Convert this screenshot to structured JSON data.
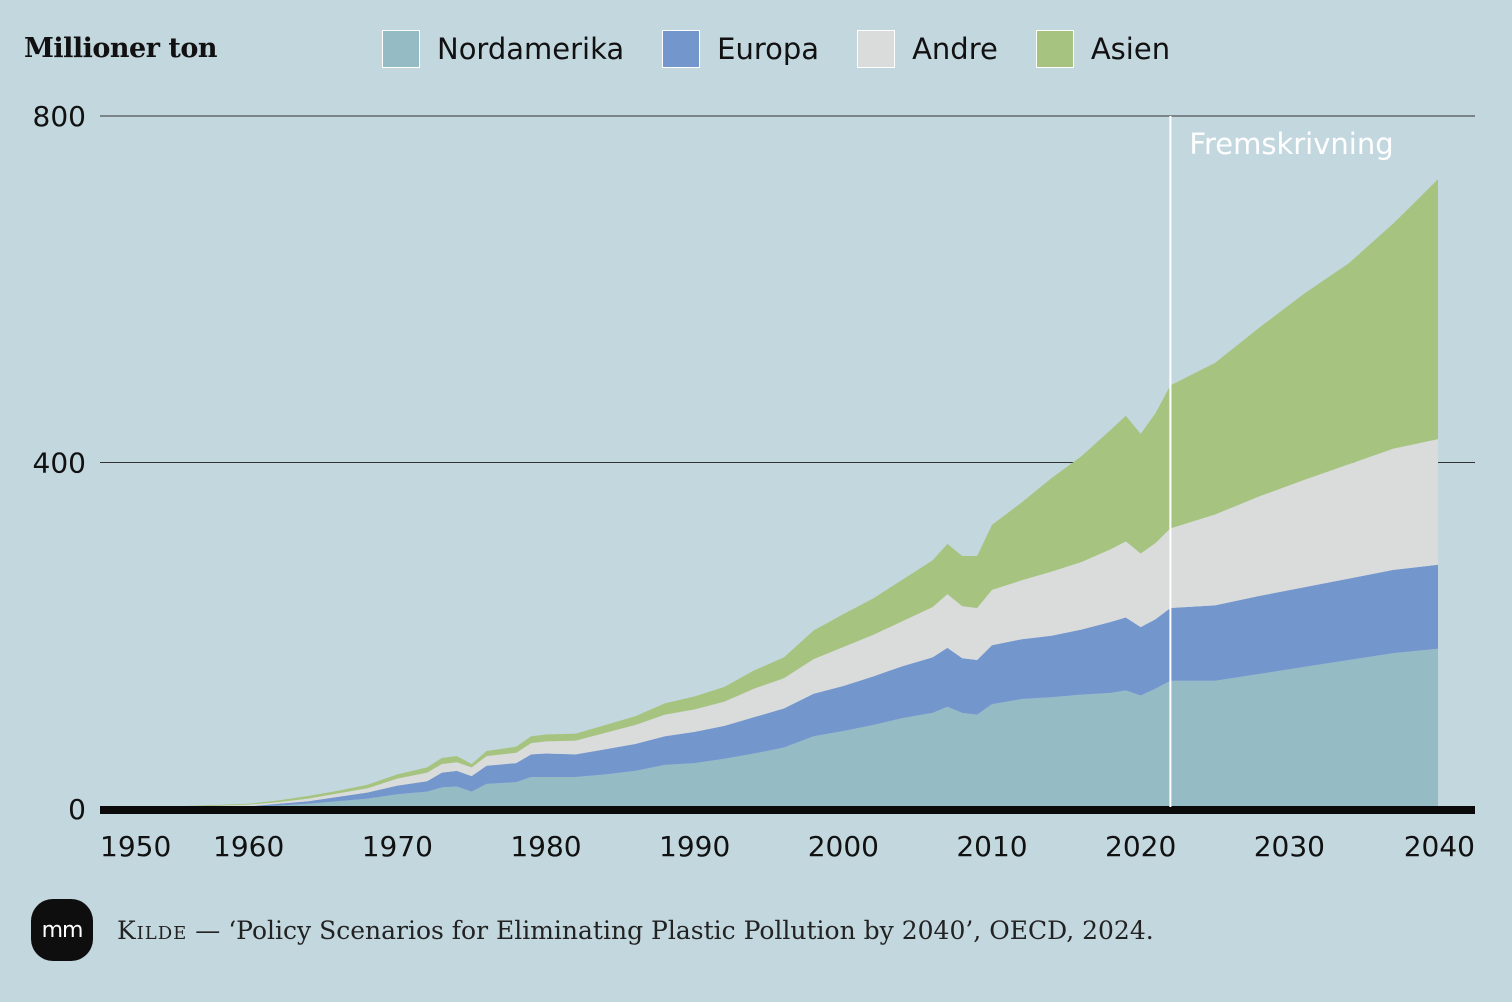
{
  "chart_data": {
    "type": "area",
    "stacked": true,
    "ylabel": "Millioner ton",
    "ylim": [
      0,
      800
    ],
    "xlim": [
      1950,
      2040
    ],
    "y_ticks": [
      "0",
      "400",
      "800"
    ],
    "x_ticks": [
      "1950",
      "1960",
      "1970",
      "1980",
      "1990",
      "2000",
      "2010",
      "2020",
      "2030",
      "2040"
    ],
    "legend_position": "top",
    "projection_start": 2022,
    "projection_label": "Fremskrivning",
    "x": [
      1950,
      1955,
      1960,
      1962,
      1964,
      1966,
      1968,
      1970,
      1972,
      1973,
      1974,
      1975,
      1976,
      1978,
      1979,
      1980,
      1982,
      1984,
      1986,
      1988,
      1990,
      1992,
      1994,
      1996,
      1998,
      2000,
      2002,
      2004,
      2006,
      2007,
      2008,
      2009,
      2010,
      2012,
      2014,
      2016,
      2018,
      2019,
      2020,
      2021,
      2022,
      2025,
      2028,
      2031,
      2034,
      2037,
      2040
    ],
    "series": [
      {
        "name": "Nordamerika",
        "color": "#95bbc4",
        "values": [
          0,
          1,
          2,
          4,
          6,
          9,
          12,
          17,
          20,
          25,
          26,
          20,
          29,
          31,
          37,
          37,
          37,
          40,
          44,
          51,
          53,
          58,
          64,
          71,
          84,
          90,
          97,
          105,
          111,
          118,
          111,
          109,
          121,
          127,
          129,
          132,
          134,
          137,
          131,
          139,
          148,
          148,
          156,
          164,
          172,
          180,
          185
        ]
      },
      {
        "name": "Europa",
        "color": "#7396cd",
        "values": [
          0,
          0,
          1,
          2,
          3,
          5,
          7,
          10,
          12,
          17,
          18,
          18,
          21,
          22,
          26,
          27,
          26,
          29,
          31,
          33,
          36,
          38,
          42,
          45,
          49,
          52,
          56,
          60,
          64,
          68,
          63,
          63,
          68,
          69,
          71,
          75,
          82,
          84,
          79,
          80,
          84,
          87,
          90,
          92,
          94,
          96,
          97
        ]
      },
      {
        "name": "Andre",
        "color": "#dadbdb",
        "values": [
          0,
          1,
          2,
          2,
          3,
          4,
          5,
          8,
          10,
          10,
          10,
          10,
          11,
          12,
          13,
          14,
          16,
          19,
          22,
          25,
          26,
          28,
          33,
          35,
          40,
          45,
          48,
          52,
          58,
          62,
          60,
          60,
          64,
          68,
          74,
          78,
          84,
          88,
          85,
          88,
          92,
          105,
          115,
          124,
          132,
          140,
          145
        ]
      },
      {
        "name": "Asien",
        "color": "#a6c47f",
        "values": [
          0,
          1,
          1,
          2,
          3,
          3,
          4,
          5,
          6,
          7,
          7,
          4,
          6,
          7,
          8,
          8,
          8,
          9,
          10,
          13,
          15,
          17,
          21,
          24,
          33,
          38,
          42,
          48,
          54,
          58,
          58,
          60,
          75,
          90,
          108,
          122,
          138,
          145,
          138,
          150,
          165,
          175,
          195,
          215,
          232,
          260,
          300
        ]
      }
    ]
  },
  "source": {
    "logo_text": "mm",
    "key": "Kilde",
    "text": " — ‘Policy Scenarios for Eliminating Plastic Pollution by 2040’, OECD, 2024."
  }
}
